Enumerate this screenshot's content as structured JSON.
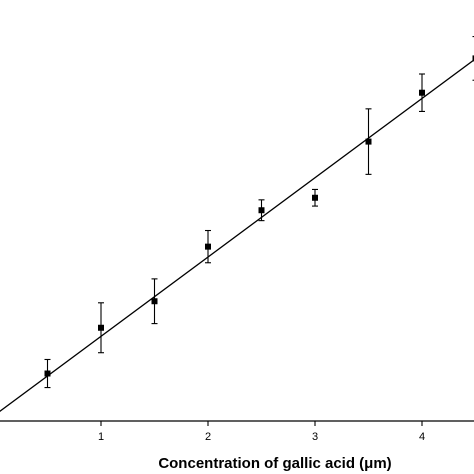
{
  "chart_data": {
    "type": "scatter",
    "title": "",
    "xlabel": "Concentration of gallic acid (μm)",
    "ylabel": "",
    "xlim": [
      0,
      4.5
    ],
    "ylim": [
      0,
      0.75
    ],
    "x_ticks": [
      1,
      2,
      3,
      4
    ],
    "x_tick_labels": [
      "1",
      "2",
      "3",
      "4"
    ],
    "grid": false,
    "legend": "none",
    "series": [
      {
        "x": [
          0.5,
          1.0,
          1.5,
          2.0,
          2.5,
          3.0,
          3.5,
          4.0,
          4.5
        ],
        "y": [
          0.074,
          0.162,
          0.213,
          0.318,
          0.388,
          0.412,
          0.52,
          0.614,
          0.68
        ],
        "error": [
          0.027,
          0.048,
          0.043,
          0.031,
          0.02,
          0.016,
          0.063,
          0.036,
          0.042
        ]
      }
    ],
    "fit_line": {
      "slope": 0.1525,
      "intercept": -0.007
    },
    "colors": {
      "marker": "#000000",
      "line": "#000000",
      "axis": "#000000"
    }
  }
}
